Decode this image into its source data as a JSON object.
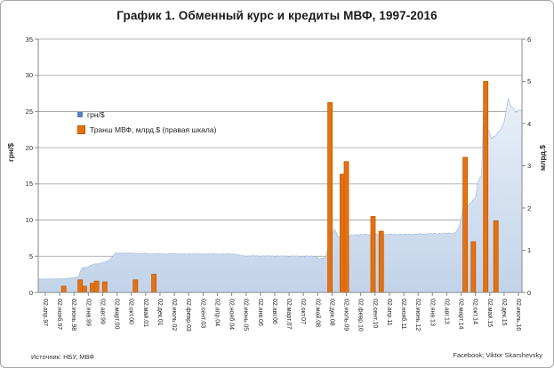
{
  "title": "График 1. Обменный курс и кредиты МВФ, 1997-2016",
  "source_note": "Источник: НБУ, МВФ",
  "credit": "Facebook; Viktor Skarshevsky",
  "legend": [
    {
      "label": "грн/$",
      "marker": "blue-square",
      "color": "#4f81bd"
    },
    {
      "label": "Транш МВФ, млрд.$ (правая шкала)",
      "marker": "orange-square",
      "color": "#e8710d"
    }
  ],
  "left_axis": {
    "title": "грн/$",
    "min": 0,
    "max": 35,
    "step": 5,
    "ticks": [
      0,
      5,
      10,
      15,
      20,
      25,
      30,
      35
    ]
  },
  "right_axis": {
    "title": "млрд.$",
    "min": 0,
    "max": 6,
    "step": 1,
    "ticks": [
      0,
      1,
      2,
      3,
      4,
      5,
      6
    ]
  },
  "x_axis": {
    "tick_interval_months": 7,
    "tick_labels": [
      "02.апр.97",
      "02.нояб.97",
      "02.июнь.98",
      "02.янв.99",
      "02.авг.99",
      "02.март.00",
      "02.окт.00",
      "02.май.01",
      "02.дек.01",
      "02.июль.02",
      "02.февр.03",
      "02.сент.03",
      "02.апр.04",
      "02.нояб.04",
      "02.июнь.05",
      "02.янв.06",
      "02.авг.06",
      "02.март.07",
      "02.окт.07",
      "02.май.08",
      "02.дек.08",
      "02.июль.09",
      "02.февр.10",
      "02.сент.10",
      "02.апр.11",
      "02.нояб.11",
      "02.июнь.12",
      "02.янв.13",
      "02.авг.13",
      "02.март.14",
      "02.окт.14",
      "02.май.15",
      "02.дек.15",
      "02.июль.16"
    ]
  },
  "colors": {
    "area_fill_top": "#e9eff8",
    "area_fill_bottom": "#c2d3e9",
    "area_edge": "#a5bedd",
    "bar_fill": "#e8710d",
    "bar_border": "#b85c0d",
    "legend_blue": "#4f81bd",
    "gridline": "#9d9d9d",
    "axis_line": "#8a8a8a",
    "text": "#262626"
  },
  "chart_data": {
    "type": "combo",
    "x_range": [
      "1997-04",
      "2016-07"
    ],
    "grid": "horizontal",
    "legend_position": "inside-top-left",
    "series": [
      {
        "name": "грн/$",
        "type": "area",
        "axis": "left",
        "points": [
          [
            "1997-04",
            1.85
          ],
          [
            "1998-01",
            1.9
          ],
          [
            "1998-08",
            2.1
          ],
          [
            "1998-09",
            2.9
          ],
          [
            "1998-10",
            3.4
          ],
          [
            "1999-01",
            3.5
          ],
          [
            "1999-02",
            3.7
          ],
          [
            "1999-04",
            3.95
          ],
          [
            "1999-07",
            4.0
          ],
          [
            "1999-10",
            4.3
          ],
          [
            "1999-12",
            4.7
          ],
          [
            "2000-02",
            5.4
          ],
          [
            "2000-06",
            5.45
          ],
          [
            "2001-06",
            5.37
          ],
          [
            "2002-01",
            5.33
          ],
          [
            "2004-12",
            5.31
          ],
          [
            "2005-04",
            5.05
          ],
          [
            "2008-04",
            5.0
          ],
          [
            "2008-06",
            4.6
          ],
          [
            "2008-09",
            4.9
          ],
          [
            "2008-10",
            6.2
          ],
          [
            "2008-12",
            8.0
          ],
          [
            "2009-01",
            8.8
          ],
          [
            "2009-03",
            7.7
          ],
          [
            "2009-08",
            7.8
          ],
          [
            "2009-12",
            8.0
          ],
          [
            "2012-01",
            8.03
          ],
          [
            "2013-12",
            8.2
          ],
          [
            "2014-02",
            9.0
          ],
          [
            "2014-04",
            11.5
          ],
          [
            "2014-05",
            12.0
          ],
          [
            "2014-06",
            11.8
          ],
          [
            "2014-08",
            12.5
          ],
          [
            "2014-10",
            13.0
          ],
          [
            "2014-11",
            15.0
          ],
          [
            "2014-12",
            15.8
          ],
          [
            "2015-01",
            16.2
          ],
          [
            "2015-02",
            24.8
          ],
          [
            "2015-04",
            22.5
          ],
          [
            "2015-06",
            21.3
          ],
          [
            "2015-08",
            21.8
          ],
          [
            "2015-10",
            22.3
          ],
          [
            "2015-12",
            23.5
          ],
          [
            "2016-01",
            25.2
          ],
          [
            "2016-02",
            26.8
          ],
          [
            "2016-03",
            26.0
          ],
          [
            "2016-04",
            25.4
          ],
          [
            "2016-05",
            25.2
          ],
          [
            "2016-06",
            24.9
          ],
          [
            "2016-07",
            25.1
          ]
        ]
      },
      {
        "name": "Транш МВФ, млрд.$ (правая шкала)",
        "type": "bar",
        "axis": "right",
        "points": [
          [
            "1998-01",
            0.15
          ],
          [
            "1998-09",
            0.3
          ],
          [
            "1998-11",
            0.15
          ],
          [
            "1999-03",
            0.22
          ],
          [
            "1999-05",
            0.27
          ],
          [
            "1999-09",
            0.25
          ],
          [
            "2000-12",
            0.3
          ],
          [
            "2001-09",
            0.43
          ],
          [
            "2008-11",
            4.5
          ],
          [
            "2009-05",
            2.8
          ],
          [
            "2009-07",
            3.1
          ],
          [
            "2010-08",
            1.8
          ],
          [
            "2010-12",
            1.45
          ],
          [
            "2014-05",
            3.2
          ],
          [
            "2014-09",
            1.2
          ],
          [
            "2015-03",
            5.0
          ],
          [
            "2015-08",
            1.7
          ]
        ]
      }
    ]
  }
}
